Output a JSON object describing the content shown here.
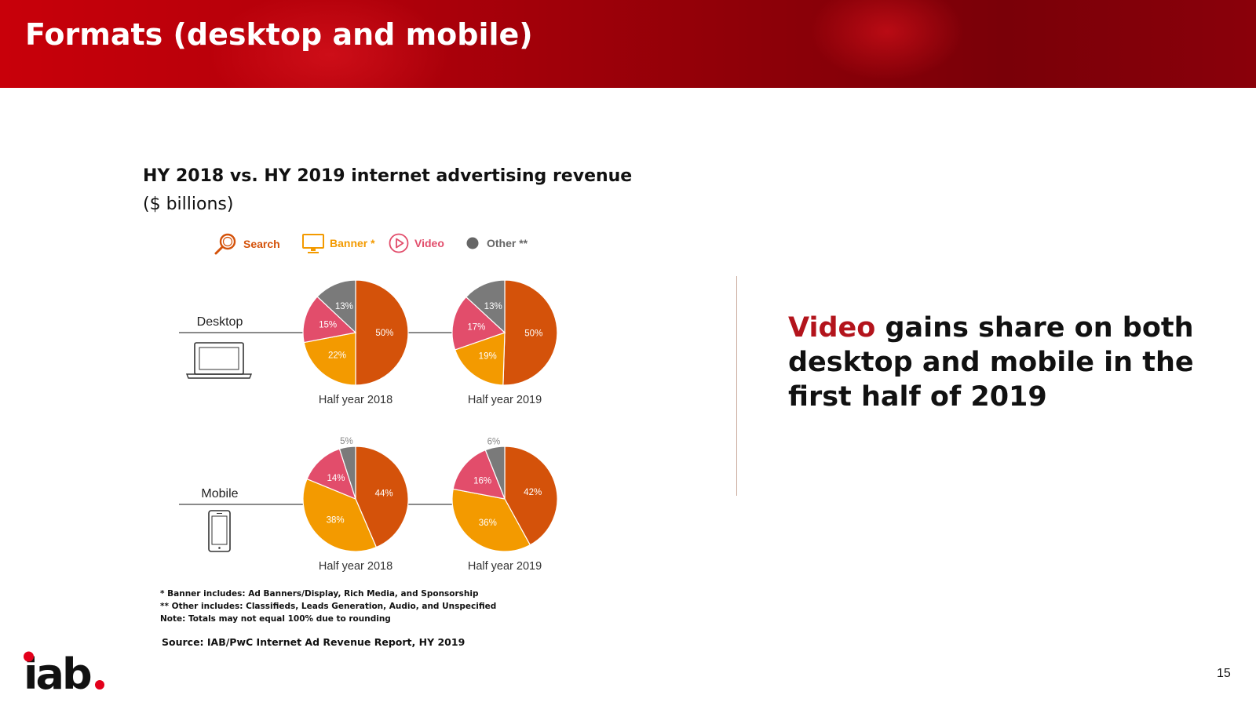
{
  "header": {
    "title": "Formats (desktop and mobile)"
  },
  "chart_heading": {
    "title": "HY 2018 vs. HY 2019 internet advertising revenue",
    "subtitle": "($ billions)"
  },
  "legend": [
    {
      "label": "Search",
      "icon": "search-icon",
      "color": "#d4520a"
    },
    {
      "label": "Banner *",
      "icon": "monitor-icon",
      "color": "#f39a00"
    },
    {
      "label": "Video",
      "icon": "play-icon",
      "color": "#e24d6b"
    },
    {
      "label": "Other **",
      "icon": "dot-icon",
      "color": "#666666"
    }
  ],
  "chart_data": {
    "type": "pie",
    "categories": [
      "Search",
      "Banner *",
      "Video",
      "Other **"
    ],
    "colors": {
      "Search": "#d4520a",
      "Banner *": "#f39a00",
      "Video": "#e24d6b",
      "Other **": "#7a7a7a"
    },
    "rows": [
      {
        "label": "Desktop",
        "device_icon": "laptop-icon",
        "pies": [
          {
            "label": "Half year 2018",
            "values": {
              "Search": 50,
              "Banner *": 22,
              "Video": 15,
              "Other **": 13
            }
          },
          {
            "label": "Half year 2019",
            "values": {
              "Search": 50,
              "Banner *": 19,
              "Video": 17,
              "Other **": 13
            }
          }
        ]
      },
      {
        "label": "Mobile",
        "device_icon": "phone-icon",
        "pies": [
          {
            "label": "Half year 2018",
            "values": {
              "Search": 44,
              "Banner *": 38,
              "Video": 14,
              "Other **": 5
            }
          },
          {
            "label": "Half year 2019",
            "values": {
              "Search": 42,
              "Banner *": 36,
              "Video": 16,
              "Other **": 6
            }
          }
        ]
      }
    ]
  },
  "footnotes": [
    "* Banner includes: Ad Banners/Display, Rich Media, and Sponsorship",
    "** Other includes: Classifieds, Leads Generation, Audio, and Unspecified",
    "Note: Totals may not equal 100% due to rounding"
  ],
  "source": "Source: IAB/PwC Internet Ad Revenue Report, HY 2019",
  "takeaway": {
    "highlight": "Video",
    "rest": " gains share on both desktop and mobile in the first half of 2019",
    "highlight_color": "#b3141c"
  },
  "logo": {
    "text": "iab",
    "dot_color": "#e3001b"
  },
  "page_number": "15"
}
